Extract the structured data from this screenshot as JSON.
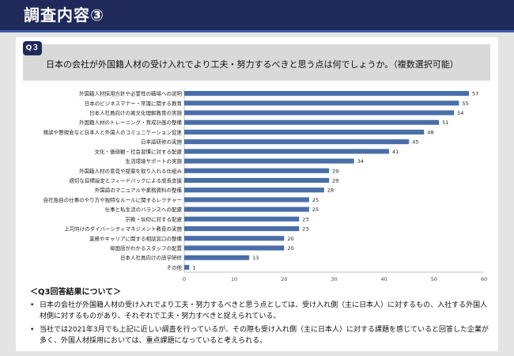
{
  "header": {
    "title": "調査内容③"
  },
  "question": {
    "badge": "Q３",
    "text": "日本の会社が外国籍人材の受け入れでより工夫・努力するべきと思う点は何でしょうか。（複数選択可能）"
  },
  "notes": {
    "title": "＜Q3回答結果について＞",
    "bullet": "•",
    "items": [
      "日本の会社が外国籍人材の受け入れでより工夫・努力するべきと思う点としては、受け入れ側（主に日本人）に対するもの、入社する外国人材側に対するものがあり、それぞれで工夫・努力すべきと捉えられている。",
      "当社では2021年3月でも上記に近しい調査を行っているが、その際も受け入れ側（主に日本人）に対する課題を感じていると回答した企業が多く、外国人材採用においては、重点課題になっていると考えられる。"
    ]
  },
  "colors": {
    "header": "#1f2a5a",
    "bar": "#4a6ea8"
  },
  "chart_data": {
    "type": "bar",
    "orientation": "horizontal",
    "categories": [
      "外国籍人材採用方針や必要性の職場への説明",
      "日本のビジネスマナー・常識に関する教育",
      "日本人社員向けの異文化理解教育の実施",
      "外国籍人材のトレーニング・育成計画の整備",
      "雑談や懇親会など日本人と外国人のコミュニケーション促進",
      "日本語研修の実施",
      "文化・価値観・社会習慣に対する配慮",
      "生活環境サポートの実施",
      "外国籍人材の意見や提案を取り入れる仕組み",
      "適切な目標設定とフィードバックによる成長支援",
      "外国語のマニュアルや業務資料の整備",
      "自社独自の仕事のやり方や独特なルールに関するレクチャー",
      "仕事と私生活のバランスへの配慮",
      "宗教・信仰に対する配慮",
      "上司向けのダイバーシティマネジメント教育の実施",
      "業務やキャリアに関する相談窓口の整備",
      "母国語がわかるスタッフの配置",
      "日本人社員向けの語学研修",
      "その他"
    ],
    "values": [
      57,
      55,
      54,
      51,
      48,
      45,
      41,
      34,
      29,
      29,
      28,
      25,
      25,
      23,
      23,
      20,
      20,
      13,
      1
    ],
    "xlim": [
      0,
      60
    ],
    "xticks": [
      0,
      10,
      20,
      30,
      40,
      50,
      60
    ],
    "grid": false,
    "legend": "none"
  }
}
